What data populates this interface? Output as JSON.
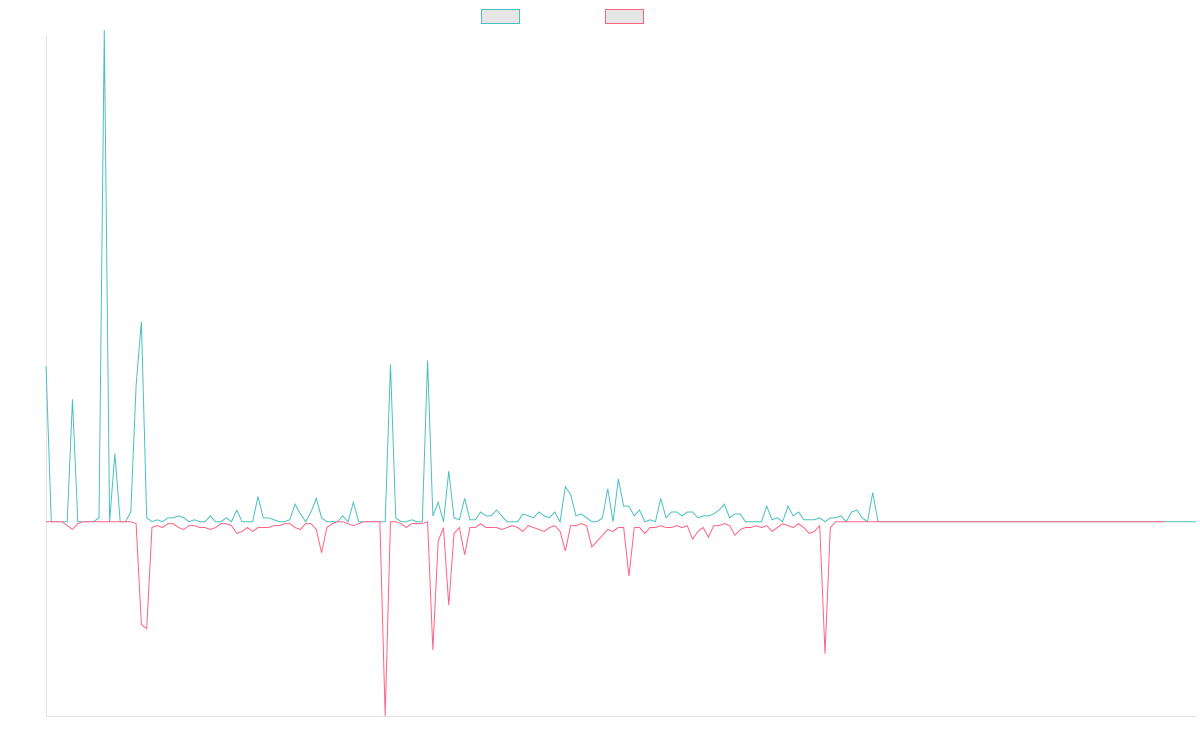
{
  "chart_data": {
    "type": "line",
    "title": "",
    "xlabel": "",
    "ylabel": "",
    "legend": "top-center",
    "grid": false,
    "ylim": [
      -100,
      250
    ],
    "series": [
      {
        "color": "#4bc0c0",
        "values": [
          80,
          0,
          0,
          0,
          0,
          63,
          0,
          0,
          0,
          0,
          2,
          253,
          0,
          35,
          0,
          0,
          5,
          70,
          103,
          2,
          0,
          1,
          0,
          2,
          2,
          3,
          2,
          0,
          1,
          0,
          0,
          3,
          0,
          0,
          2,
          0,
          6,
          0,
          0,
          0,
          13,
          2,
          2,
          1,
          0,
          0,
          1,
          9,
          4,
          0,
          5,
          12,
          2,
          0,
          0,
          0,
          3,
          0,
          10,
          0,
          0,
          0,
          0,
          0,
          0,
          81,
          2,
          0,
          0,
          1,
          0,
          0,
          83,
          3,
          10,
          0,
          26,
          2,
          1,
          12,
          1,
          1,
          5,
          3,
          3,
          6,
          3,
          0,
          0,
          0,
          4,
          3,
          2,
          5,
          3,
          2,
          5,
          0,
          18,
          14,
          3,
          4,
          2,
          0,
          0,
          2,
          17,
          0,
          22,
          8,
          8,
          3,
          6,
          0,
          1,
          0,
          12,
          2,
          5,
          5,
          3,
          5,
          5,
          2,
          3,
          3,
          4,
          6,
          9,
          2,
          4,
          4,
          0,
          0,
          0,
          0,
          8,
          1,
          2,
          0,
          8,
          3,
          5,
          1,
          1,
          1,
          2,
          0,
          2,
          2,
          3,
          0,
          5,
          6,
          2,
          0,
          15,
          0,
          0,
          0,
          0,
          0,
          0,
          0,
          0,
          0,
          0,
          0,
          0,
          0,
          0,
          0,
          0,
          0,
          0,
          0,
          0,
          0,
          0,
          0,
          0,
          0,
          0,
          0,
          0,
          0,
          0,
          0,
          0,
          0,
          0,
          0,
          0,
          0,
          0,
          0,
          0,
          0,
          0,
          0,
          0,
          0,
          0,
          0,
          0,
          0,
          0,
          0,
          0,
          0,
          0,
          0,
          0,
          0,
          0,
          0,
          0,
          0
        ]
      },
      {
        "color": "#ff6384",
        "values": [
          0,
          0,
          0,
          0,
          -2,
          -4,
          -1,
          0,
          0,
          0,
          0,
          0,
          0,
          0,
          0,
          0,
          0,
          -1,
          -53,
          -55,
          -3,
          -2,
          -3,
          -1,
          -1,
          -3,
          -4,
          -2,
          -2,
          -3,
          -3,
          -4,
          -3,
          -1,
          -1,
          -2,
          -6,
          -5,
          -3,
          -5,
          -3,
          -3,
          -3,
          -2,
          -2,
          -1,
          -1,
          -3,
          -4,
          -1,
          -1,
          -4,
          -16,
          -3,
          -1,
          0,
          0,
          -1,
          -2,
          -1,
          0,
          0,
          0,
          0,
          -100,
          0,
          0,
          -1,
          -3,
          -1,
          -1,
          -1,
          0,
          -66,
          -10,
          -3,
          -43,
          -6,
          -3,
          -17,
          -3,
          -3,
          -1,
          -3,
          -3,
          -3,
          -4,
          -3,
          -2,
          -3,
          -5,
          -2,
          -3,
          -4,
          -5,
          -3,
          -2,
          -5,
          -15,
          -2,
          -2,
          -1,
          -2,
          -13,
          -10,
          -7,
          -4,
          -5,
          -3,
          -3,
          -28,
          -3,
          -3,
          -6,
          -3,
          -3,
          -2,
          -3,
          -3,
          -2,
          -3,
          -2,
          -9,
          -5,
          -3,
          -8,
          -2,
          -2,
          -1,
          -2,
          -7,
          -4,
          -3,
          -3,
          -2,
          -3,
          -2,
          -5,
          -3,
          -1,
          -2,
          -3,
          -1,
          -3,
          -6,
          -5,
          -2,
          -68,
          -3,
          0,
          0,
          0,
          0,
          0,
          0,
          0,
          0,
          0,
          0,
          0,
          0,
          0,
          0,
          0,
          0,
          0,
          0,
          0,
          0,
          0,
          0,
          0,
          0,
          0,
          0,
          0,
          0,
          0,
          0,
          0,
          0,
          0,
          0,
          0,
          0,
          0,
          0,
          0,
          0,
          0,
          0,
          0,
          0,
          0,
          0,
          0,
          0,
          0,
          0,
          0,
          0,
          0,
          0,
          0,
          0,
          0,
          0,
          0,
          0,
          0,
          0,
          0
        ]
      }
    ]
  }
}
